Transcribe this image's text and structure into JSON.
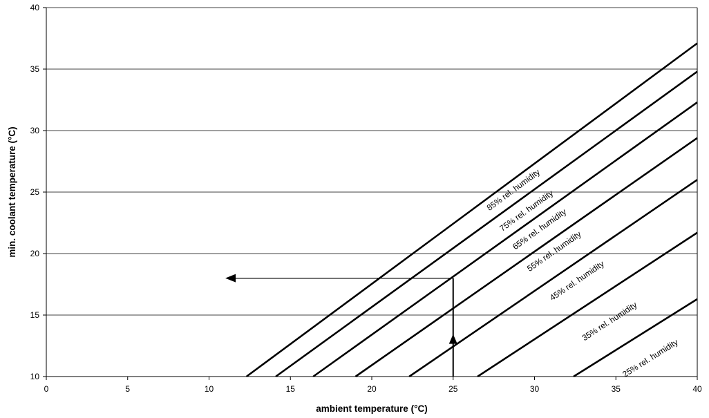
{
  "chart_data": {
    "type": "line",
    "title": "",
    "xlabel": "ambient temperature (°C)",
    "ylabel": "min. coolant temperature (°C)",
    "xlim": [
      0,
      40
    ],
    "ylim": [
      10,
      40
    ],
    "x_ticks": [
      0,
      5,
      10,
      15,
      20,
      25,
      30,
      35,
      40
    ],
    "y_ticks": [
      10,
      15,
      20,
      25,
      30,
      35,
      40
    ],
    "grid": "horizontal",
    "legend": "none",
    "series": [
      {
        "name": "85% rel. humidity",
        "x": [
          12.3,
          40
        ],
        "y": [
          10,
          37.1
        ]
      },
      {
        "name": "75% rel. humidity",
        "x": [
          14.1,
          40
        ],
        "y": [
          10,
          34.8
        ]
      },
      {
        "name": "65% rel. humidity",
        "x": [
          16.4,
          40
        ],
        "y": [
          10,
          32.3
        ]
      },
      {
        "name": "55% rel. humidity",
        "x": [
          19.0,
          40
        ],
        "y": [
          10,
          29.4
        ]
      },
      {
        "name": "45% rel. humidity",
        "x": [
          22.3,
          40
        ],
        "y": [
          10,
          26.0
        ]
      },
      {
        "name": "35% rel. humidity",
        "x": [
          26.5,
          40
        ],
        "y": [
          10,
          21.7
        ]
      },
      {
        "name": "25% rel. humidity",
        "x": [
          32.4,
          40
        ],
        "y": [
          10,
          16.3
        ]
      }
    ],
    "annotation": {
      "vertical": {
        "x": 25,
        "y_from": 10,
        "y_to": 18
      },
      "horizontal": {
        "y": 18,
        "x_from": 25,
        "x_to": 11
      }
    }
  }
}
